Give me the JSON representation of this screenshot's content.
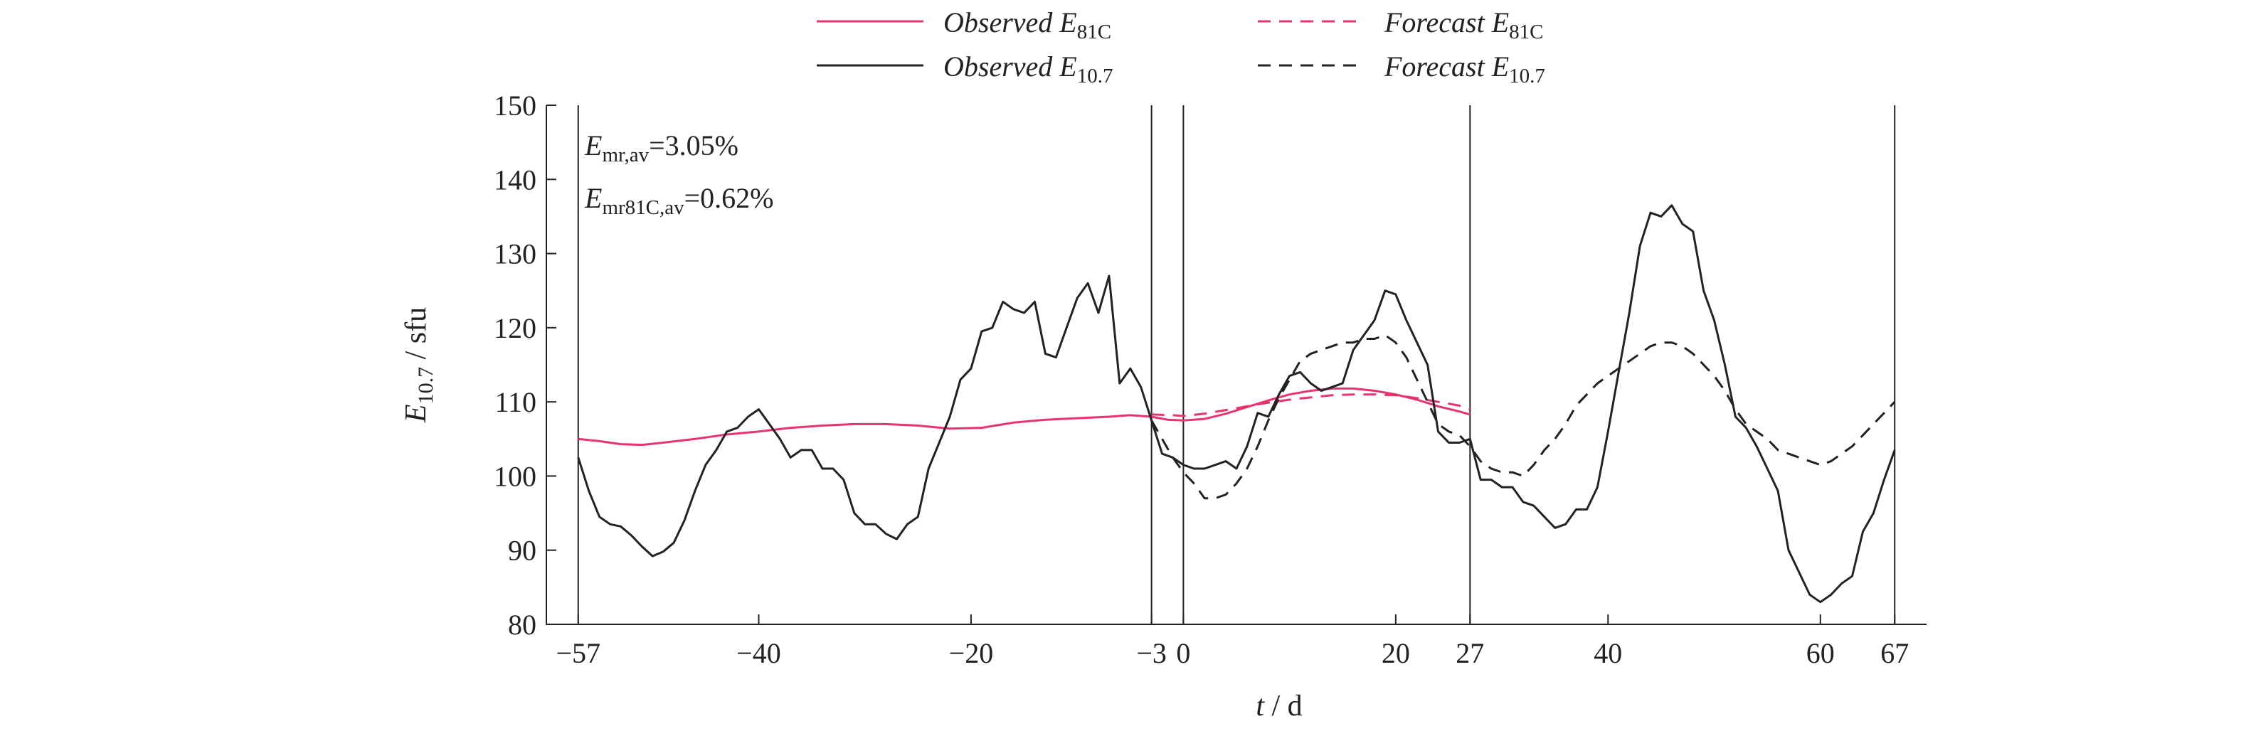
{
  "chart_data": {
    "type": "line",
    "title": "",
    "xlabel": {
      "main": "t",
      "unit": " / d"
    },
    "ylabel": {
      "main": "E",
      "sub": "10.7",
      "unit": " / sfu"
    },
    "xlim": [
      -60,
      70
    ],
    "ylim": [
      80,
      150
    ],
    "grid": false,
    "legend_position": "top-center",
    "xticks": [
      {
        "value": -57,
        "label": "−57"
      },
      {
        "value": -40,
        "label": "−40"
      },
      {
        "value": -20,
        "label": "−20"
      },
      {
        "value": -3,
        "label": "−3"
      },
      {
        "value": 0,
        "label": "0"
      },
      {
        "value": 20,
        "label": "20"
      },
      {
        "value": 27,
        "label": "27"
      },
      {
        "value": 40,
        "label": "40"
      },
      {
        "value": 60,
        "label": "60"
      },
      {
        "value": 67,
        "label": "67"
      }
    ],
    "yticks": [
      {
        "value": 80,
        "label": "80"
      },
      {
        "value": 90,
        "label": "90"
      },
      {
        "value": 100,
        "label": "100"
      },
      {
        "value": 110,
        "label": "110"
      },
      {
        "value": 120,
        "label": "120"
      },
      {
        "value": 130,
        "label": "130"
      },
      {
        "value": 140,
        "label": "140"
      },
      {
        "value": 150,
        "label": "150"
      }
    ],
    "vertical_lines": [
      -57,
      -3,
      0,
      27,
      67
    ],
    "annotations": [
      {
        "main": "E",
        "sub": "mr,av",
        "text": "=3.05%"
      },
      {
        "main": "E",
        "sub": "mr81C,av",
        "text": "=0.62%"
      }
    ],
    "series": [
      {
        "name": "Observed E81C",
        "legend": {
          "main": "Observed E",
          "sub": "81C"
        },
        "color": "#e8336b",
        "style": "solid",
        "points": [
          [
            -57,
            105
          ],
          [
            -55,
            104.7
          ],
          [
            -53,
            104.3
          ],
          [
            -51,
            104.2
          ],
          [
            -49,
            104.5
          ],
          [
            -46,
            105
          ],
          [
            -43,
            105.6
          ],
          [
            -40,
            106
          ],
          [
            -37,
            106.5
          ],
          [
            -34,
            106.8
          ],
          [
            -31,
            107
          ],
          [
            -28,
            107
          ],
          [
            -25,
            106.8
          ],
          [
            -22,
            106.4
          ],
          [
            -19,
            106.5
          ],
          [
            -16,
            107.2
          ],
          [
            -13,
            107.6
          ],
          [
            -10,
            107.8
          ],
          [
            -7,
            108
          ],
          [
            -5,
            108.2
          ],
          [
            -3,
            108
          ],
          [
            -1.5,
            107.6
          ],
          [
            0,
            107.5
          ],
          [
            2,
            107.7
          ],
          [
            4,
            108.4
          ],
          [
            6,
            109.3
          ],
          [
            8,
            110.2
          ],
          [
            10,
            111
          ],
          [
            12,
            111.5
          ],
          [
            14,
            111.8
          ],
          [
            16,
            111.8
          ],
          [
            18,
            111.5
          ],
          [
            20,
            111
          ],
          [
            22,
            110.3
          ],
          [
            24,
            109.4
          ],
          [
            26,
            108.7
          ],
          [
            27,
            108.3
          ]
        ]
      },
      {
        "name": "Forecast E81C",
        "legend": {
          "main": "Forecast E",
          "sub": "81C"
        },
        "color": "#e8336b",
        "style": "dashed",
        "points": [
          [
            -3,
            108.3
          ],
          [
            -1,
            108.2
          ],
          [
            0,
            108.1
          ],
          [
            2,
            108.4
          ],
          [
            4,
            108.9
          ],
          [
            6,
            109.4
          ],
          [
            8,
            109.9
          ],
          [
            10,
            110.3
          ],
          [
            12,
            110.6
          ],
          [
            14,
            110.9
          ],
          [
            16,
            111
          ],
          [
            18,
            111
          ],
          [
            20,
            110.9
          ],
          [
            22,
            110.5
          ],
          [
            24,
            110
          ],
          [
            26,
            109.5
          ],
          [
            27,
            109
          ]
        ]
      },
      {
        "name": "Observed E10.7",
        "legend": {
          "main": "Observed E",
          "sub": "10.7"
        },
        "color": "#222222",
        "style": "solid",
        "points": [
          [
            -57,
            102.5
          ],
          [
            -56,
            98
          ],
          [
            -55,
            94.5
          ],
          [
            -54,
            93.5
          ],
          [
            -53,
            93.2
          ],
          [
            -52,
            92
          ],
          [
            -51,
            90.5
          ],
          [
            -50,
            89.2
          ],
          [
            -49,
            89.8
          ],
          [
            -48,
            91
          ],
          [
            -47,
            94
          ],
          [
            -46,
            98
          ],
          [
            -45,
            101.5
          ],
          [
            -44,
            103.5
          ],
          [
            -43,
            106
          ],
          [
            -42,
            106.5
          ],
          [
            -41,
            108
          ],
          [
            -40,
            109
          ],
          [
            -39,
            107
          ],
          [
            -38,
            105
          ],
          [
            -37,
            102.5
          ],
          [
            -36,
            103.5
          ],
          [
            -35,
            103.5
          ],
          [
            -34,
            101
          ],
          [
            -33,
            101
          ],
          [
            -32,
            99.5
          ],
          [
            -31,
            95
          ],
          [
            -30,
            93.5
          ],
          [
            -29,
            93.5
          ],
          [
            -28,
            92.2
          ],
          [
            -27,
            91.5
          ],
          [
            -26,
            93.5
          ],
          [
            -25,
            94.5
          ],
          [
            -24,
            101
          ],
          [
            -23,
            104.5
          ],
          [
            -22,
            108
          ],
          [
            -21,
            113
          ],
          [
            -20,
            114.5
          ],
          [
            -19,
            119.5
          ],
          [
            -18,
            120
          ],
          [
            -17,
            123.5
          ],
          [
            -16,
            122.5
          ],
          [
            -15,
            122
          ],
          [
            -14,
            123.5
          ],
          [
            -13,
            116.5
          ],
          [
            -12,
            116
          ],
          [
            -11,
            120
          ],
          [
            -10,
            124
          ],
          [
            -9,
            126
          ],
          [
            -8,
            122
          ],
          [
            -7,
            127
          ],
          [
            -6,
            112.5
          ],
          [
            -5,
            114.5
          ],
          [
            -4,
            112
          ],
          [
            -3,
            107.5
          ],
          [
            -2,
            103
          ],
          [
            -1,
            102.5
          ],
          [
            0,
            101.5
          ],
          [
            1,
            101
          ],
          [
            2,
            101
          ],
          [
            3,
            101.5
          ],
          [
            4,
            102
          ],
          [
            5,
            101
          ],
          [
            6,
            104
          ],
          [
            7,
            108.5
          ],
          [
            8,
            108
          ],
          [
            9,
            111
          ],
          [
            10,
            113.5
          ],
          [
            11,
            114
          ],
          [
            12,
            112.5
          ],
          [
            13,
            111.5
          ],
          [
            14,
            112
          ],
          [
            15,
            112.5
          ],
          [
            16,
            117
          ],
          [
            17,
            119
          ],
          [
            18,
            121
          ],
          [
            19,
            125
          ],
          [
            20,
            124.5
          ],
          [
            21,
            121
          ],
          [
            22,
            118
          ],
          [
            23,
            115
          ],
          [
            24,
            106
          ],
          [
            25,
            104.5
          ],
          [
            26,
            104.5
          ],
          [
            27,
            105
          ],
          [
            28,
            99.5
          ],
          [
            29,
            99.5
          ],
          [
            30,
            98.5
          ],
          [
            31,
            98.5
          ],
          [
            32,
            96.5
          ],
          [
            33,
            96
          ],
          [
            34,
            94.5
          ],
          [
            35,
            93
          ],
          [
            36,
            93.5
          ],
          [
            37,
            95.5
          ],
          [
            38,
            95.5
          ],
          [
            39,
            98.5
          ],
          [
            40,
            106
          ],
          [
            41,
            114
          ],
          [
            42,
            122
          ],
          [
            43,
            131
          ],
          [
            44,
            135.5
          ],
          [
            45,
            135
          ],
          [
            46,
            136.5
          ],
          [
            47,
            134
          ],
          [
            48,
            133
          ],
          [
            49,
            125
          ],
          [
            50,
            121
          ],
          [
            51,
            115
          ],
          [
            52,
            108
          ],
          [
            53,
            106.5
          ],
          [
            54,
            104
          ],
          [
            55,
            101
          ],
          [
            56,
            98
          ],
          [
            57,
            90
          ],
          [
            58,
            87
          ],
          [
            59,
            84
          ],
          [
            60,
            83
          ],
          [
            61,
            84
          ],
          [
            62,
            85.5
          ],
          [
            63,
            86.5
          ],
          [
            64,
            92.5
          ],
          [
            65,
            95
          ],
          [
            66,
            99.5
          ],
          [
            67,
            103.5
          ]
        ]
      },
      {
        "name": "Forecast E10.7",
        "legend": {
          "main": "Forecast E",
          "sub": "10.7"
        },
        "color": "#222222",
        "style": "dashed",
        "points": [
          [
            -3,
            107.5
          ],
          [
            -2,
            105
          ],
          [
            -1,
            102.5
          ],
          [
            0,
            100.5
          ],
          [
            1,
            99
          ],
          [
            2,
            97
          ],
          [
            3,
            97
          ],
          [
            4,
            97.5
          ],
          [
            5,
            99
          ],
          [
            6,
            101
          ],
          [
            7,
            104
          ],
          [
            8,
            107.5
          ],
          [
            9,
            110.5
          ],
          [
            10,
            113
          ],
          [
            11,
            115.5
          ],
          [
            12,
            116.5
          ],
          [
            13,
            117
          ],
          [
            14,
            117.5
          ],
          [
            15,
            118
          ],
          [
            16,
            118
          ],
          [
            17,
            118.5
          ],
          [
            18,
            118.5
          ],
          [
            19,
            119
          ],
          [
            20,
            118
          ],
          [
            21,
            116
          ],
          [
            22,
            113
          ],
          [
            23,
            110
          ],
          [
            24,
            107
          ],
          [
            25,
            106
          ],
          [
            26,
            105.5
          ],
          [
            27,
            104
          ],
          [
            28,
            102
          ],
          [
            29,
            101
          ],
          [
            30,
            100.5
          ],
          [
            31,
            100.5
          ],
          [
            32,
            100
          ],
          [
            33,
            101.5
          ],
          [
            34,
            103.5
          ],
          [
            35,
            105
          ],
          [
            36,
            107
          ],
          [
            37,
            109.5
          ],
          [
            38,
            111
          ],
          [
            39,
            112.5
          ],
          [
            40,
            113.5
          ],
          [
            41,
            114.5
          ],
          [
            42,
            115.5
          ],
          [
            43,
            116.5
          ],
          [
            44,
            117.5
          ],
          [
            45,
            118
          ],
          [
            46,
            118
          ],
          [
            47,
            117.5
          ],
          [
            48,
            116.5
          ],
          [
            49,
            115
          ],
          [
            50,
            113.5
          ],
          [
            51,
            111.5
          ],
          [
            52,
            109
          ],
          [
            53,
            107
          ],
          [
            54,
            106
          ],
          [
            55,
            105
          ],
          [
            56,
            103.5
          ],
          [
            57,
            103
          ],
          [
            58,
            102.5
          ],
          [
            59,
            102
          ],
          [
            60,
            101.5
          ],
          [
            61,
            102
          ],
          [
            62,
            103
          ],
          [
            63,
            104
          ],
          [
            64,
            105.5
          ],
          [
            65,
            107
          ],
          [
            66,
            108.5
          ],
          [
            67,
            110
          ]
        ]
      }
    ]
  }
}
